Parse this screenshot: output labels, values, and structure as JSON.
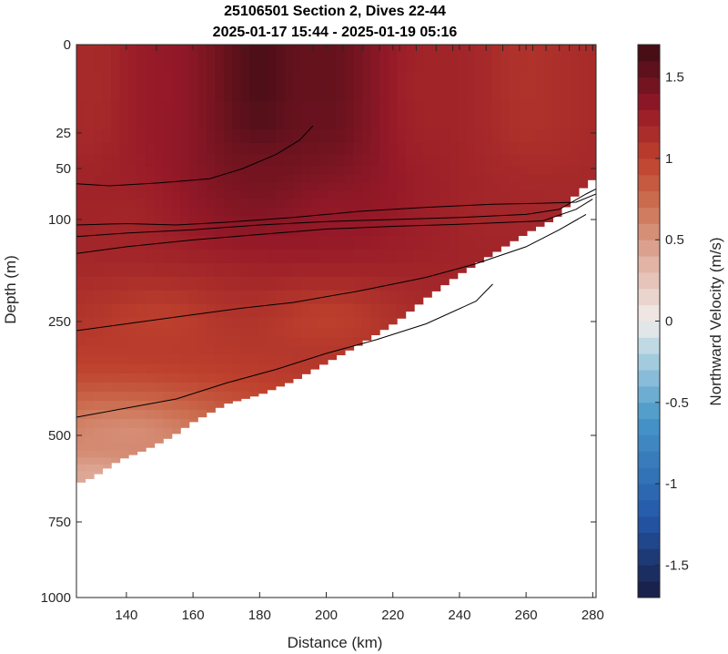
{
  "chart_data": {
    "type": "heatmap",
    "title_line1": "25106501 Section 2, Dives 22-44",
    "title_line2": "2025-01-17 15:44 - 2025-01-19 05:16",
    "xlabel": "Distance (km)",
    "ylabel": "Depth (m)",
    "colorbar_label": "Northward Velocity (m/s)",
    "xlim": [
      125,
      281
    ],
    "ylim": [
      0,
      1000
    ],
    "x_ticks": [
      140,
      160,
      180,
      200,
      220,
      240,
      260,
      280
    ],
    "y_tick_labels": [
      "0",
      "25",
      "50",
      "100",
      "250",
      "500",
      "750",
      "1000"
    ],
    "colorbar_range": [
      -1.7,
      1.7
    ],
    "colorbar_ticks": [
      "1.5",
      "1",
      "0.5",
      "0",
      "-0.5",
      "-1",
      "-1.5"
    ],
    "colorbar_tick_values": [
      1.5,
      1,
      0.5,
      0,
      -0.5,
      -1,
      -1.5
    ],
    "dive_marks_top_km": [
      149,
      175,
      196,
      205,
      211,
      216,
      222,
      227,
      233,
      238,
      243,
      248,
      253,
      258,
      262,
      266,
      270,
      273,
      276,
      278,
      280
    ],
    "seafloor_profile": {
      "x_km": [
        125,
        130,
        138,
        146,
        150,
        160,
        170,
        180,
        190,
        200,
        210,
        220,
        230,
        240,
        250,
        260,
        270,
        275,
        280
      ],
      "depth_m": [
        640,
        620,
        570,
        540,
        520,
        470,
        430,
        410,
        380,
        340,
        300,
        255,
        215,
        180,
        150,
        120,
        95,
        75,
        60
      ]
    },
    "velocity_samples": [
      {
        "x_km": 130,
        "depth_m": 10,
        "v": 1.15
      },
      {
        "x_km": 150,
        "depth_m": 10,
        "v": 1.3
      },
      {
        "x_km": 180,
        "depth_m": 10,
        "v": 1.7
      },
      {
        "x_km": 200,
        "depth_m": 10,
        "v": 1.55
      },
      {
        "x_km": 230,
        "depth_m": 10,
        "v": 1.2
      },
      {
        "x_km": 260,
        "depth_m": 10,
        "v": 1.1
      },
      {
        "x_km": 180,
        "depth_m": 50,
        "v": 1.45
      },
      {
        "x_km": 140,
        "depth_m": 100,
        "v": 1.2
      },
      {
        "x_km": 200,
        "depth_m": 100,
        "v": 1.3
      },
      {
        "x_km": 250,
        "depth_m": 100,
        "v": 1.2
      },
      {
        "x_km": 150,
        "depth_m": 250,
        "v": 1.0
      },
      {
        "x_km": 200,
        "depth_m": 250,
        "v": 1.0
      },
      {
        "x_km": 140,
        "depth_m": 500,
        "v": 0.55
      },
      {
        "x_km": 130,
        "depth_m": 620,
        "v": 0.4
      }
    ],
    "contours": [
      {
        "x_km": [
          125,
          135,
          150,
          165,
          175,
          185,
          192,
          196
        ],
        "depth_m": [
          65,
          67,
          64,
          60,
          50,
          40,
          30,
          23
        ]
      },
      {
        "x_km": [
          125,
          140,
          155,
          170,
          190,
          210,
          230,
          250,
          265,
          275,
          281
        ],
        "depth_m": [
          108,
          106,
          108,
          104,
          98,
          92,
          88,
          85,
          84,
          83,
          75
        ]
      },
      {
        "x_km": [
          125,
          140,
          160,
          180,
          200,
          220,
          240,
          260,
          270,
          278,
          281
        ],
        "depth_m": [
          125,
          120,
          115,
          108,
          103,
          100,
          98,
          95,
          90,
          75,
          70
        ]
      },
      {
        "x_km": [
          125,
          140,
          160,
          180,
          200,
          220,
          240,
          255,
          265,
          275,
          280
        ],
        "depth_m": [
          150,
          140,
          130,
          122,
          114,
          110,
          107,
          104,
          102,
          90,
          80
        ]
      },
      {
        "x_km": [
          125,
          140,
          160,
          175,
          190,
          210,
          230,
          245,
          260,
          270,
          278
        ],
        "depth_m": [
          270,
          255,
          240,
          230,
          222,
          205,
          185,
          165,
          140,
          115,
          95
        ]
      },
      {
        "x_km": [
          125,
          140,
          155,
          170,
          185,
          200,
          215,
          230,
          245,
          250
        ],
        "depth_m": [
          460,
          440,
          420,
          385,
          355,
          320,
          290,
          255,
          220,
          195
        ]
      }
    ]
  }
}
